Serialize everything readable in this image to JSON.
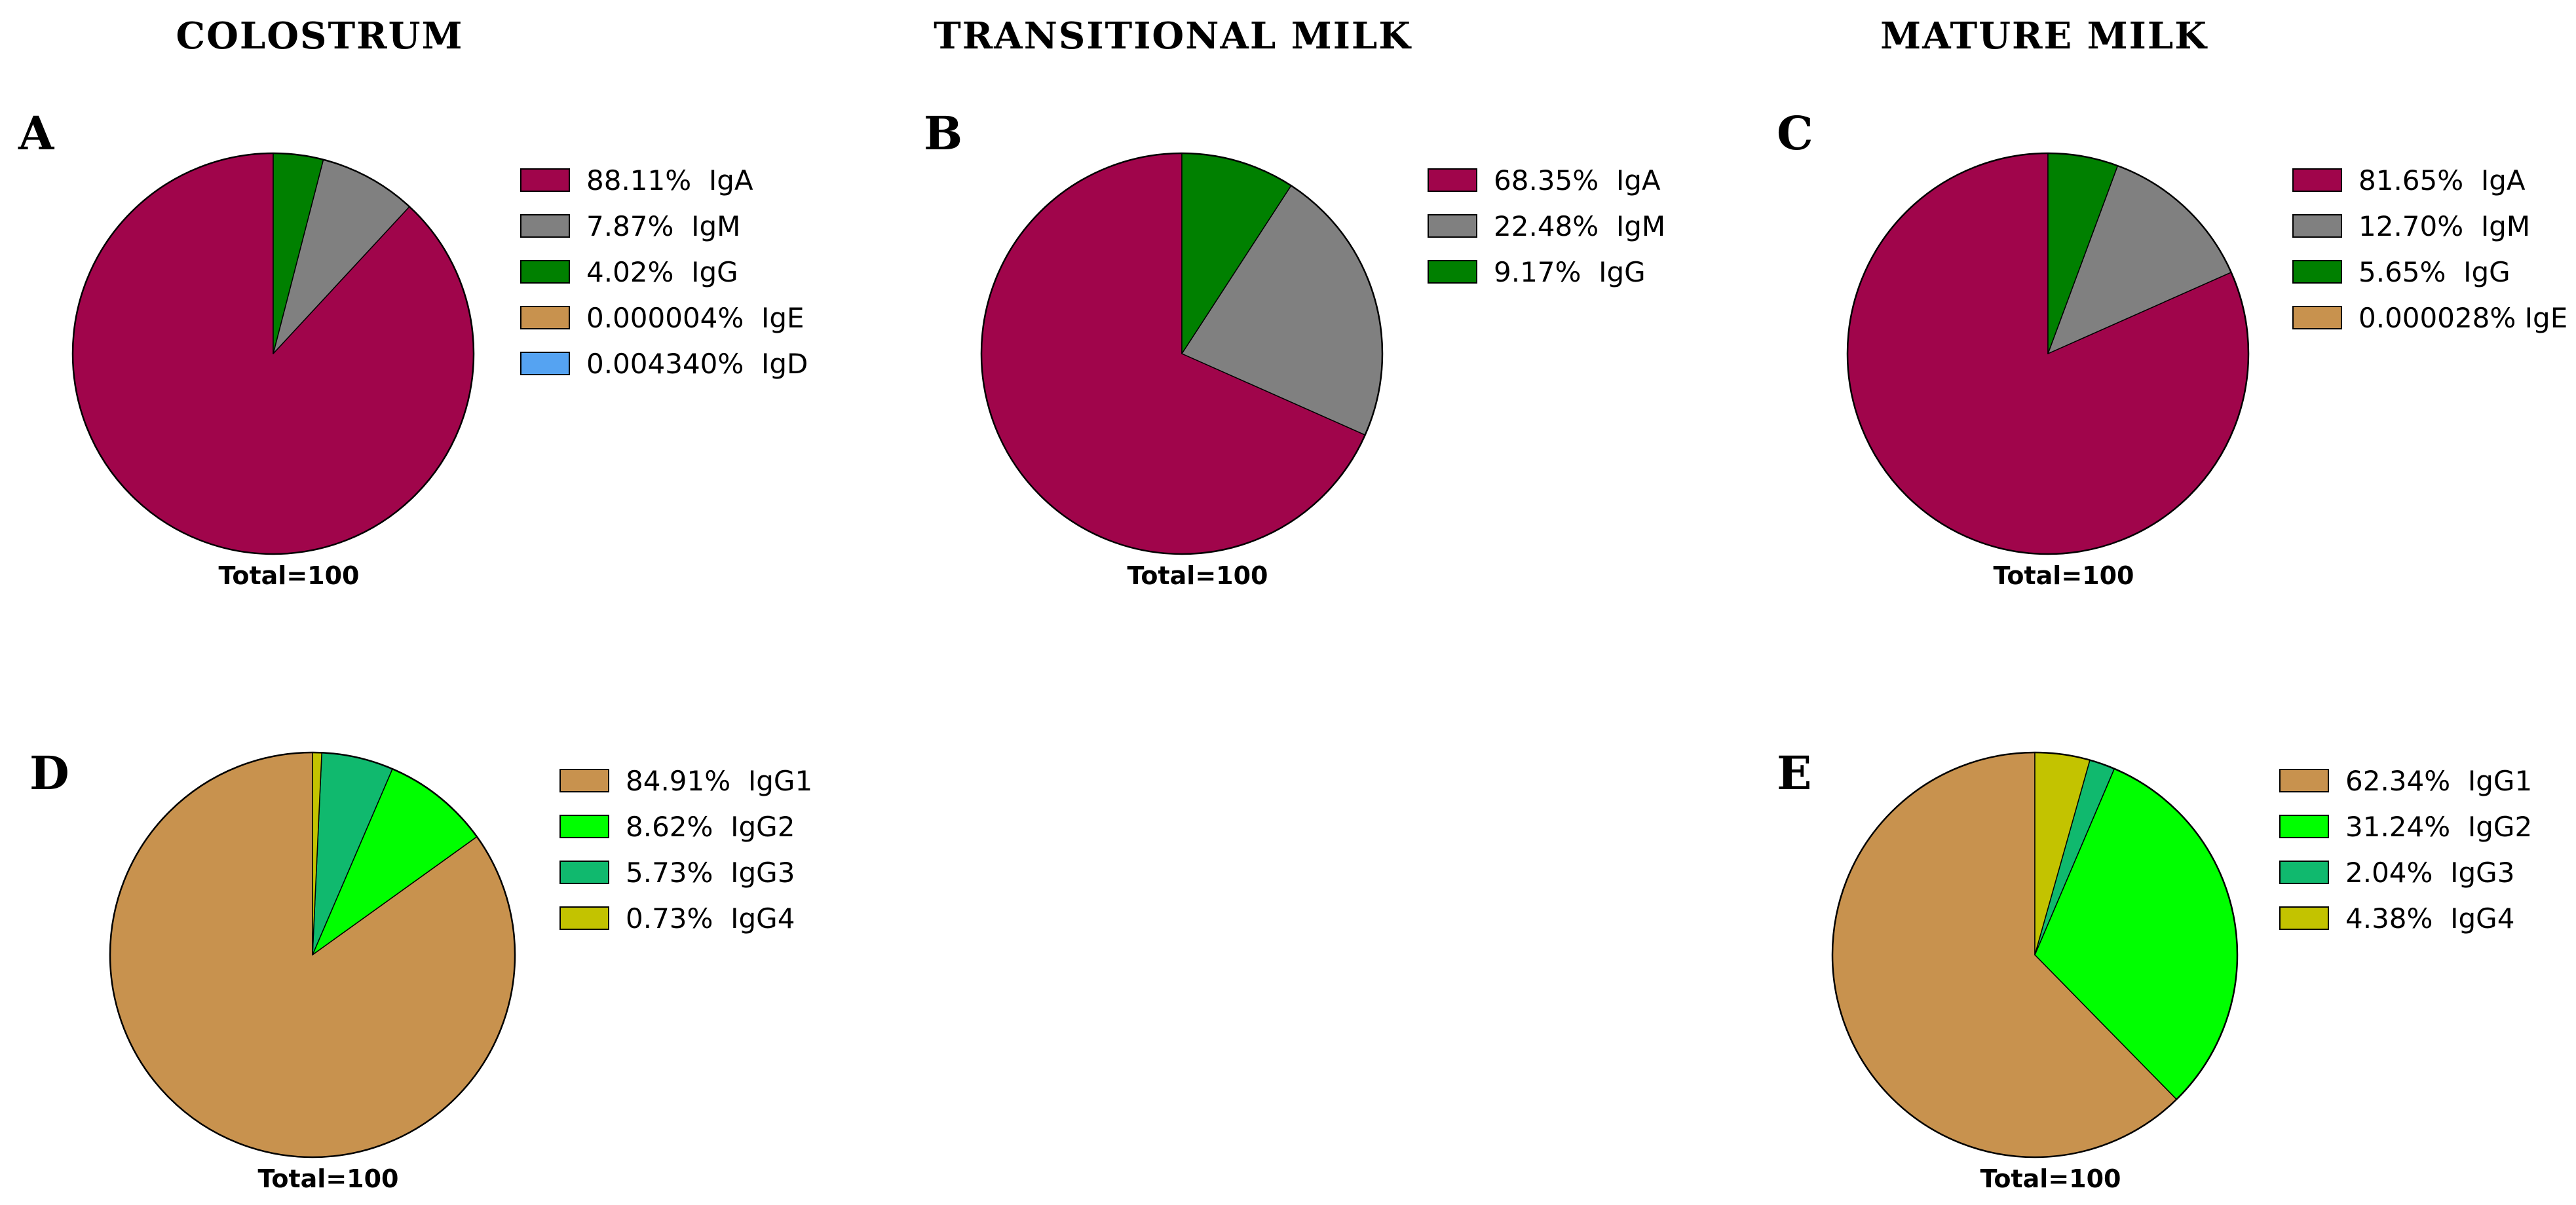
{
  "column_titles": [
    "COLOSTRUM",
    "TRANSITIONAL MILK",
    "MATURE MILK"
  ],
  "colors": {
    "IgA": "#A0054B",
    "IgM": "#808080",
    "IgG": "#008000",
    "IgE": "#C8924E",
    "IgD": "#55A3F2",
    "IgG1": "#C8924E",
    "IgG2": "#00FF00",
    "IgG3": "#10B96E",
    "IgG4": "#C3C300"
  },
  "chart_data": [
    {
      "type": "pie",
      "panel": "A",
      "column": "COLOSTRUM",
      "total_label": "Total=100",
      "categories": [
        "IgA",
        "IgM",
        "IgG",
        "IgE",
        "IgD"
      ],
      "values": [
        88.11,
        7.87,
        4.02,
        4e-06,
        0.00434
      ],
      "legend_labels": [
        "88.11%  IgA",
        "7.87%  IgM",
        "4.02%  IgG",
        "0.000004%  IgE",
        "0.004340%  IgD"
      ]
    },
    {
      "type": "pie",
      "panel": "B",
      "column": "TRANSITIONAL MILK",
      "total_label": "Total=100",
      "categories": [
        "IgA",
        "IgM",
        "IgG"
      ],
      "values": [
        68.35,
        22.48,
        9.17
      ],
      "legend_labels": [
        "68.35%  IgA",
        "22.48%  IgM",
        "9.17%  IgG"
      ]
    },
    {
      "type": "pie",
      "panel": "C",
      "column": "MATURE MILK",
      "total_label": "Total=100",
      "categories": [
        "IgA",
        "IgM",
        "IgG",
        "IgE"
      ],
      "values": [
        81.65,
        12.7,
        5.65,
        2.8e-05
      ],
      "legend_labels": [
        "81.65%  IgA",
        "12.70%  IgM",
        "5.65%  IgG",
        "0.000028% IgE"
      ]
    },
    {
      "type": "pie",
      "panel": "D",
      "column": "COLOSTRUM",
      "total_label": "Total=100",
      "categories": [
        "IgG1",
        "IgG2",
        "IgG3",
        "IgG4"
      ],
      "values": [
        84.91,
        8.62,
        5.73,
        0.73
      ],
      "legend_labels": [
        "84.91%  IgG1",
        "8.62%  IgG2",
        "5.73%  IgG3",
        "0.73%  IgG4"
      ]
    },
    {
      "type": "pie",
      "panel": "E",
      "column": "MATURE MILK",
      "total_label": "Total=100",
      "categories": [
        "IgG1",
        "IgG2",
        "IgG3",
        "IgG4"
      ],
      "values": [
        62.34,
        31.24,
        2.04,
        4.38
      ],
      "legend_labels": [
        "62.34%  IgG1",
        "31.24%  IgG2",
        "2.04%  IgG3",
        "4.38%  IgG4"
      ]
    }
  ]
}
